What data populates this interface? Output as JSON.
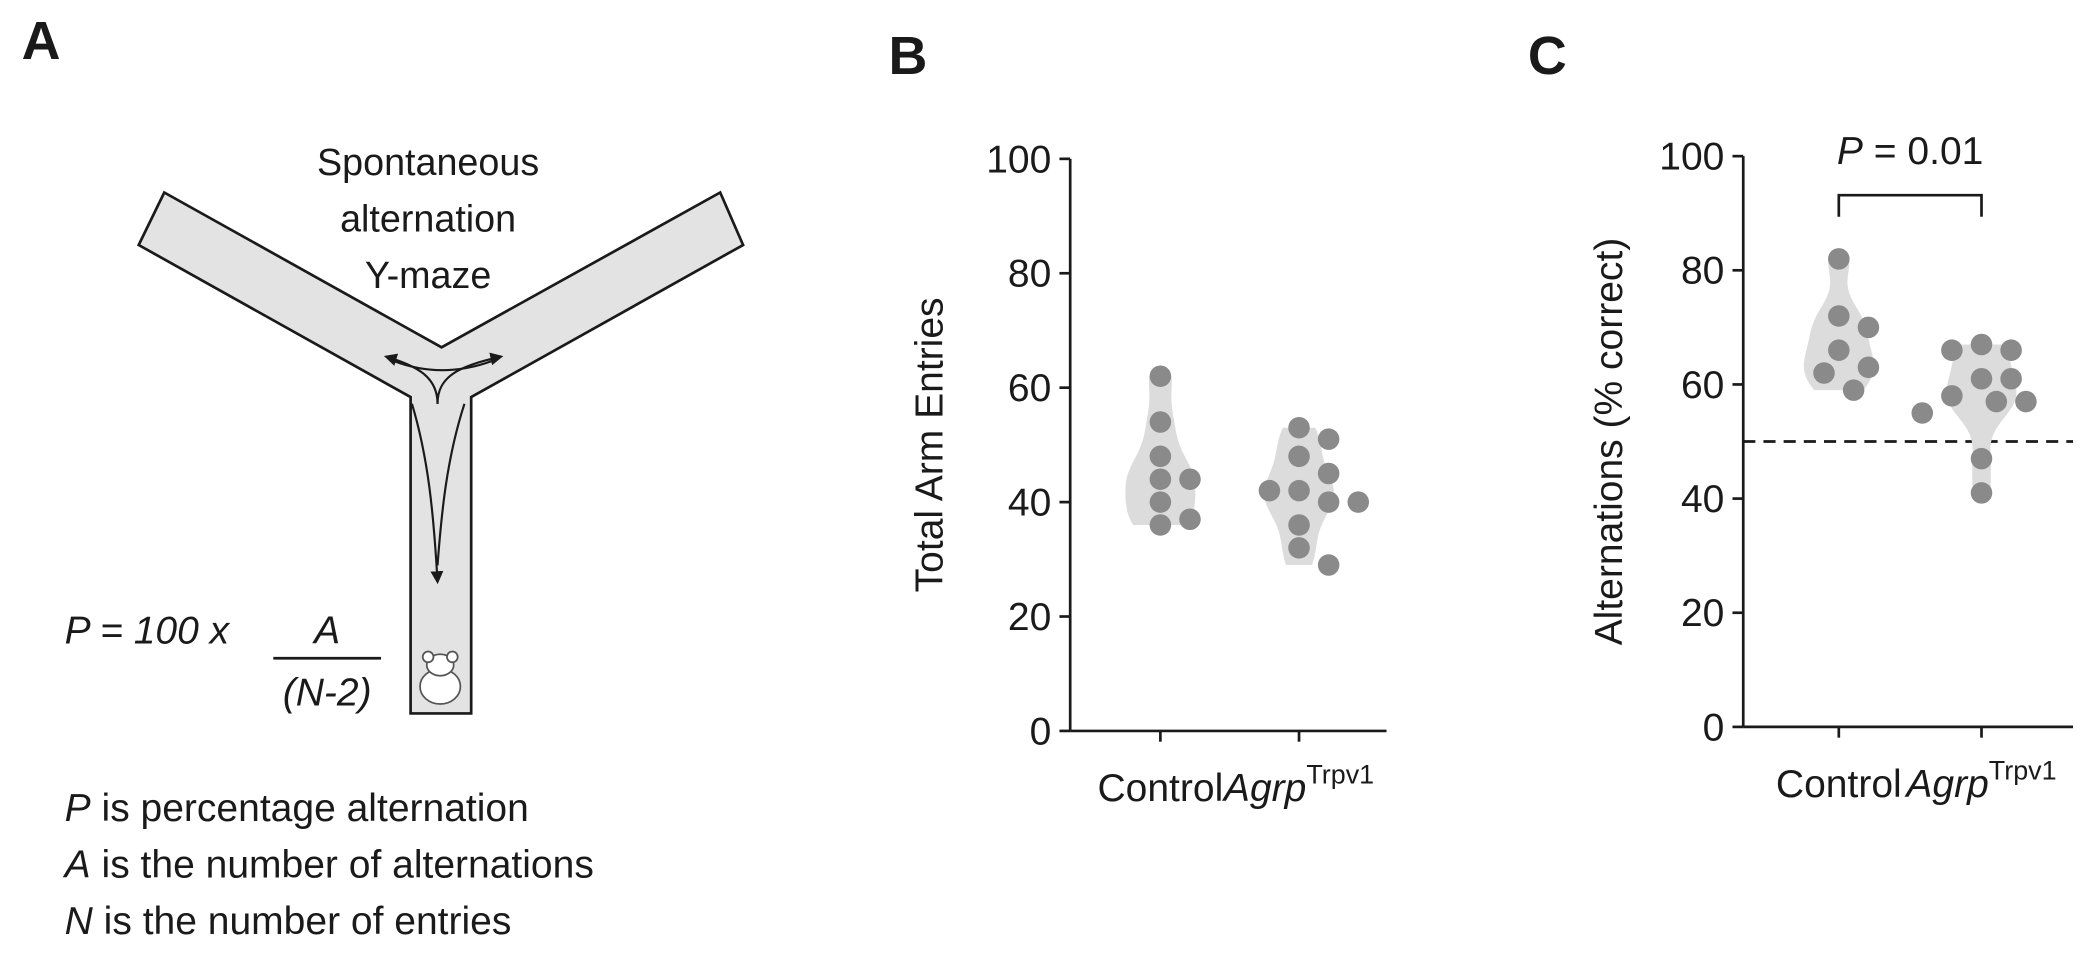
{
  "panel_a": {
    "label": "A",
    "maze_title": [
      "Spontaneous",
      "alternation",
      "Y-maze"
    ],
    "formula": {
      "lhs": "P = 100 x",
      "numerator": "A",
      "denominator": "(N-2)"
    },
    "definitions": [
      {
        "symbol": "P",
        "text": " is percentage alternation"
      },
      {
        "symbol": "A",
        "text": " is the number of alternations"
      },
      {
        "symbol": "N",
        "text": " is the number of entries"
      }
    ]
  },
  "chart_data": [
    {
      "type": "scatter",
      "panel_label": "B",
      "y_label": "Total Arm Entries",
      "categories": [
        "Control",
        "Agrp"
      ],
      "category_superscripts": [
        null,
        "Trpv1"
      ],
      "category_italic": [
        false,
        true
      ],
      "values": [
        [
          62,
          54,
          48,
          44,
          44,
          40,
          37,
          36
        ],
        [
          53,
          51,
          48,
          45,
          42,
          42,
          40,
          40,
          36,
          32,
          29
        ]
      ],
      "color": "#8a8a8a",
      "violin_color": "#dcdcdc",
      "ylim": [
        0,
        100
      ],
      "yticks": [
        0,
        20,
        40,
        60,
        80,
        100
      ]
    },
    {
      "type": "scatter",
      "panel_label": "C",
      "y_label": "Alternations (% correct)",
      "categories": [
        "Control",
        "Agrp"
      ],
      "category_superscripts": [
        null,
        "Trpv1"
      ],
      "category_italic": [
        false,
        true
      ],
      "values": [
        [
          82,
          72,
          70,
          66,
          63,
          62,
          59
        ],
        [
          67,
          66,
          66,
          61,
          61,
          58,
          57,
          57,
          55,
          47,
          41
        ]
      ],
      "color": "#8a8a8a",
      "violin_color": "#dcdcdc",
      "ylim": [
        0,
        100
      ],
      "yticks": [
        0,
        20,
        40,
        60,
        80,
        100
      ],
      "reference_line": 50,
      "annotation": "P = 0.01",
      "comparison": [
        0,
        1
      ]
    }
  ]
}
